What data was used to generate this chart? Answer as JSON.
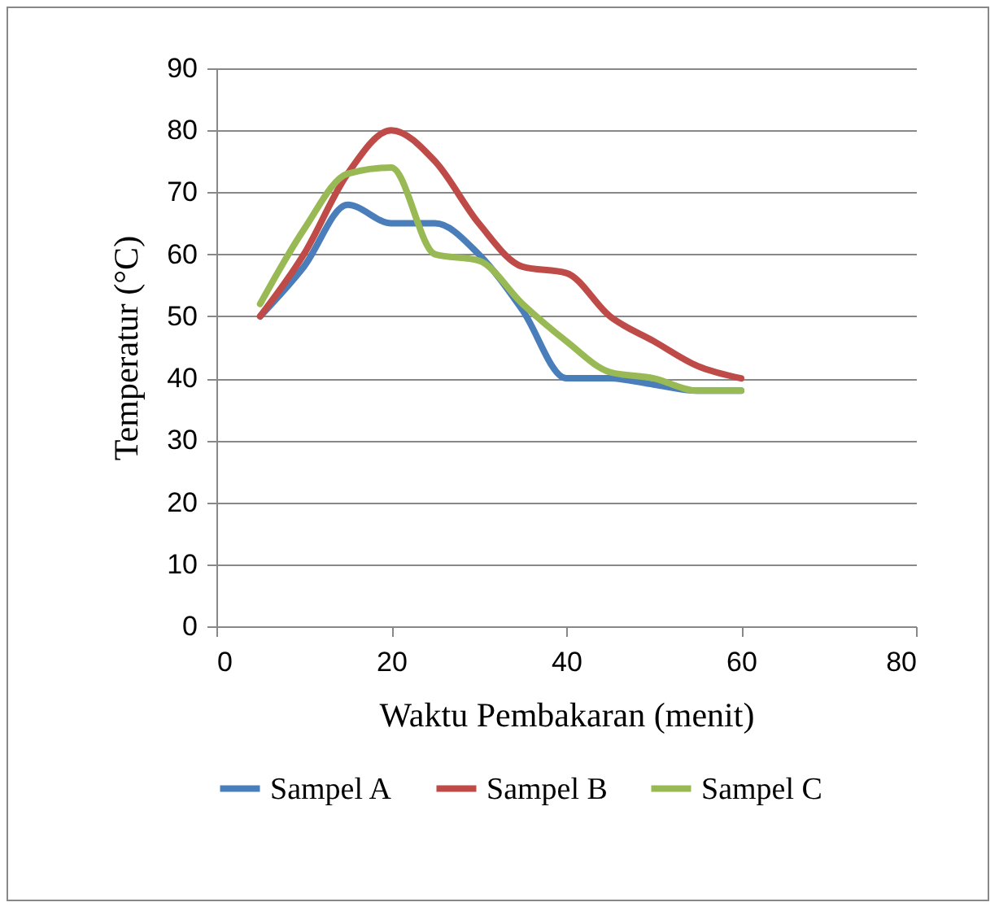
{
  "chart_data": {
    "type": "line",
    "xlabel": "Waktu Pembakaran (menit)",
    "ylabel": "Temperatur (°C)",
    "x": [
      5,
      10,
      15,
      20,
      25,
      30,
      35,
      40,
      45,
      50,
      55,
      60
    ],
    "series": [
      {
        "name": "Sampel A",
        "color": "#4a7ebb",
        "values": [
          50,
          58,
          68,
          65,
          65,
          60,
          51,
          40,
          40,
          39,
          38,
          38
        ]
      },
      {
        "name": "Sampel B",
        "color": "#be4b48",
        "values": [
          50,
          60,
          73,
          80,
          75,
          65,
          58,
          57,
          50,
          46,
          42,
          40
        ]
      },
      {
        "name": "Sampel C",
        "color": "#98b954",
        "values": [
          52,
          64,
          73,
          74,
          60,
          59,
          52,
          46,
          41,
          40,
          38,
          38
        ]
      }
    ],
    "xlim": [
      0,
      80
    ],
    "xticks": [
      0,
      20,
      40,
      60,
      80
    ],
    "ylim": [
      0,
      90
    ],
    "yticks": [
      0,
      10,
      20,
      30,
      40,
      50,
      60,
      70,
      80,
      90
    ],
    "grid": "y",
    "legend": "bottom",
    "marker": "none",
    "line_style": "solid"
  }
}
